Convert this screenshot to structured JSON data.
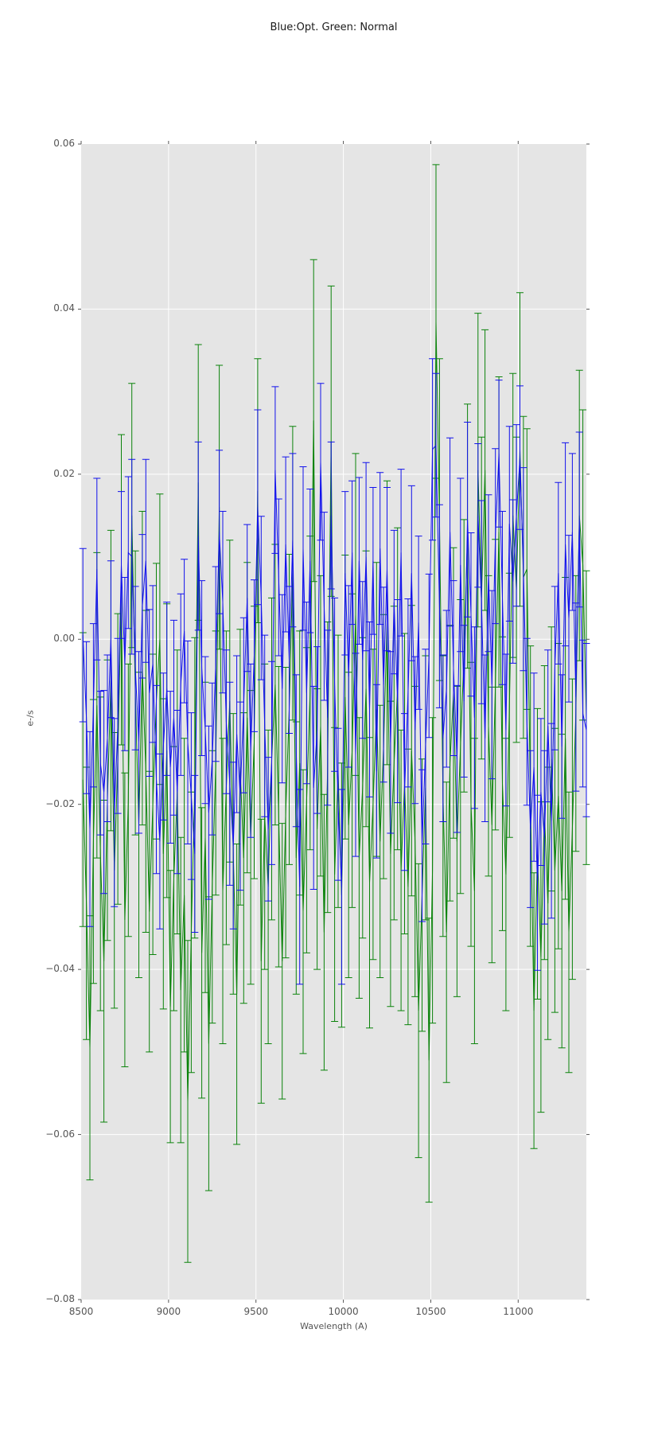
{
  "figure": {
    "title": "Blue:Opt. Green: Normal",
    "xlabel": "Wavelength (A)",
    "ylabel": "e-/s"
  },
  "colors": {
    "background": "#ffffff",
    "plot_background": "#e5e5e5",
    "grid": "#ffffff",
    "tick": "#555555",
    "tick_label": "#555555",
    "title": "#1a1a1a",
    "blue_series": "#1212ec",
    "green_series": "#0b830b"
  },
  "chart_data": {
    "type": "line",
    "subtype": "errorbar",
    "title": "Blue:Opt. Green: Normal",
    "xlabel": "Wavelength (A)",
    "ylabel": "e-/s",
    "xlim": [
      8500,
      11390
    ],
    "ylim": [
      -0.08,
      0.06
    ],
    "xticks": [
      8500,
      9000,
      9500,
      10000,
      10500,
      11000
    ],
    "xtick_labels": [
      "8500",
      "9000",
      "9500",
      "10000",
      "10500",
      "11000"
    ],
    "yticks": [
      0.06,
      0.04,
      0.02,
      0.0,
      -0.02,
      -0.04,
      -0.06,
      -0.08
    ],
    "ytick_labels": [
      "0.06",
      "0.04",
      "0.02",
      "0.00",
      "−0.02",
      "−0.04",
      "−0.06",
      "−0.08"
    ],
    "grid": true,
    "legend_position": "none",
    "x_start": 8510,
    "x_step": 20,
    "n_points": 145,
    "series": [
      {
        "name": "Normal",
        "color": "#0b830b",
        "marker": "none",
        "errorbar_capsize_px": 9,
        "y": [
          -0.017,
          -0.032,
          -0.0495,
          -0.0245,
          -0.008,
          -0.026,
          -0.039,
          -0.0195,
          -0.005,
          -0.028,
          -0.0145,
          0.006,
          -0.034,
          -0.0195,
          0.015,
          -0.0065,
          -0.0225,
          -0.0035,
          -0.016,
          -0.033,
          -0.02,
          -0.0075,
          0.0,
          -0.026,
          -0.0135,
          -0.0445,
          -0.029,
          -0.0185,
          -0.0425,
          -0.031,
          -0.056,
          -0.0355,
          -0.018,
          0.019,
          -0.038,
          -0.024,
          -0.049,
          -0.03,
          -0.015,
          0.016,
          -0.0305,
          -0.018,
          -0.0075,
          -0.026,
          -0.043,
          -0.0155,
          -0.0265,
          -0.0095,
          -0.024,
          -0.0125,
          0.018,
          -0.039,
          -0.0215,
          -0.03,
          -0.0145,
          -0.0055,
          -0.0215,
          -0.039,
          -0.021,
          -0.0085,
          0.008,
          -0.0265,
          -0.015,
          -0.033,
          -0.0195,
          -0.0065,
          0.0265,
          -0.023,
          -0.0105,
          -0.0355,
          -0.0155,
          0.024,
          -0.0285,
          -0.016,
          -0.031,
          -0.007,
          -0.0225,
          -0.0135,
          0.003,
          -0.0265,
          -0.018,
          -0.006,
          -0.0295,
          -0.02,
          -0.0085,
          -0.0245,
          -0.013,
          0.002,
          -0.026,
          -0.015,
          -0.006,
          -0.028,
          -0.0175,
          -0.03,
          -0.0135,
          -0.0245,
          -0.045,
          -0.031,
          -0.018,
          -0.051,
          -0.028,
          0.0385,
          0.0145,
          -0.019,
          -0.0355,
          -0.015,
          -0.0065,
          -0.0245,
          -0.013,
          -0.002,
          0.0125,
          -0.02,
          -0.0305,
          0.0205,
          0.005,
          0.0205,
          -0.0105,
          -0.0225,
          -0.0055,
          0.013,
          -0.0175,
          -0.0285,
          -0.008,
          0.015,
          0.006,
          0.023,
          0.0075,
          0.0085,
          -0.019,
          -0.045,
          -0.026,
          -0.0385,
          -0.021,
          -0.032,
          -0.0145,
          -0.028,
          -0.019,
          -0.0305,
          -0.012,
          -0.0355,
          -0.023,
          -0.009,
          0.015,
          0.009,
          -0.0095
        ],
        "yerr": [
          0.0178,
          0.0165,
          0.016,
          0.0172,
          0.0185,
          0.019,
          0.0195,
          0.017,
          0.0182,
          0.0167,
          0.0176,
          0.0188,
          0.0178,
          0.0165,
          0.016,
          0.0172,
          0.0185,
          0.019,
          0.0195,
          0.017,
          0.0182,
          0.0167,
          0.0176,
          0.0188,
          0.0178,
          0.0165,
          0.016,
          0.0172,
          0.0185,
          0.019,
          0.0195,
          0.017,
          0.0182,
          0.0167,
          0.0176,
          0.0188,
          0.0178,
          0.0165,
          0.016,
          0.0172,
          0.0185,
          0.019,
          0.0195,
          0.017,
          0.0182,
          0.0167,
          0.0176,
          0.0188,
          0.0178,
          0.0165,
          0.016,
          0.0172,
          0.0185,
          0.019,
          0.0195,
          0.017,
          0.0182,
          0.0167,
          0.0176,
          0.0188,
          0.0178,
          0.0165,
          0.016,
          0.0172,
          0.0185,
          0.019,
          0.0195,
          0.017,
          0.0182,
          0.0167,
          0.0176,
          0.0188,
          0.0178,
          0.0165,
          0.016,
          0.0172,
          0.0185,
          0.019,
          0.0195,
          0.017,
          0.0182,
          0.0167,
          0.0176,
          0.0188,
          0.0178,
          0.0165,
          0.016,
          0.0172,
          0.0185,
          0.019,
          0.0195,
          0.017,
          0.0182,
          0.0167,
          0.0176,
          0.0188,
          0.0178,
          0.0165,
          0.016,
          0.0172,
          0.0185,
          0.019,
          0.0195,
          0.017,
          0.0182,
          0.0167,
          0.0176,
          0.0188,
          0.0178,
          0.0165,
          0.016,
          0.0172,
          0.0185,
          0.019,
          0.0195,
          0.017,
          0.0182,
          0.0167,
          0.0176,
          0.0188,
          0.0178,
          0.0165,
          0.016,
          0.0172,
          0.0185,
          0.019,
          0.0195,
          0.017,
          0.0182,
          0.0167,
          0.0176,
          0.0188,
          0.0178,
          0.0165,
          0.016,
          0.0172,
          0.0185,
          0.019,
          0.0195,
          0.017,
          0.0182,
          0.0167,
          0.0176,
          0.0188,
          0.0178
        ]
      },
      {
        "name": "Opt",
        "color": "#1212ec",
        "marker": "none",
        "errorbar_capsize_px": 9,
        "y": [
          0.0005,
          -0.0095,
          -0.023,
          -0.008,
          0.0085,
          -0.015,
          -0.0185,
          -0.012,
          0.0,
          -0.021,
          -0.0105,
          0.009,
          -0.003,
          0.0105,
          0.01,
          -0.0035,
          -0.0125,
          0.004,
          0.0095,
          -0.0065,
          -0.003,
          -0.017,
          -0.0245,
          -0.013,
          -0.006,
          -0.0155,
          -0.0095,
          -0.0185,
          -0.0055,
          0.001,
          -0.0125,
          -0.019,
          -0.026,
          0.0125,
          -0.0035,
          -0.011,
          -0.021,
          -0.0145,
          -0.003,
          0.013,
          0.0045,
          -0.01,
          -0.0175,
          -0.025,
          -0.0115,
          -0.019,
          -0.008,
          0.005,
          -0.0135,
          -0.002,
          0.016,
          0.005,
          -0.0105,
          -0.023,
          -0.015,
          0.0205,
          0.0075,
          -0.006,
          0.0115,
          -0.0025,
          0.012,
          -0.0135,
          -0.03,
          0.011,
          -0.0065,
          0.0095,
          -0.018,
          -0.011,
          0.0215,
          0.004,
          -0.0095,
          0.015,
          -0.0055,
          -0.02,
          -0.03,
          0.008,
          -0.0045,
          0.0105,
          -0.014,
          0.0095,
          -0.0025,
          0.01,
          -0.0085,
          0.0095,
          -0.016,
          0.011,
          -0.0055,
          0.0085,
          -0.0125,
          0.0045,
          -0.0075,
          0.0105,
          -0.0185,
          -0.0065,
          0.008,
          -0.011,
          0.002,
          -0.025,
          -0.013,
          -0.002,
          0.023,
          0.0235,
          0.004,
          -0.012,
          -0.006,
          0.013,
          -0.0035,
          -0.0145,
          0.009,
          -0.0075,
          0.0145,
          0.003,
          -0.0095,
          0.015,
          0.0045,
          -0.012,
          0.008,
          -0.0055,
          0.0125,
          0.0225,
          0.005,
          -0.011,
          0.014,
          0.007,
          0.015,
          0.022,
          0.0085,
          -0.01,
          -0.023,
          -0.0155,
          -0.0295,
          -0.0185,
          -0.024,
          -0.0105,
          -0.022,
          -0.0035,
          0.008,
          -0.013,
          0.0115,
          0.0025,
          0.013,
          -0.007,
          0.0145,
          -0.009,
          -0.011
        ],
        "yerr": [
          0.0105,
          0.0092,
          0.0118,
          0.0099,
          0.011,
          0.0087,
          0.0123,
          0.0101,
          0.0095,
          0.0114,
          0.0106,
          0.0089,
          0.0105,
          0.0092,
          0.0118,
          0.0099,
          0.011,
          0.0087,
          0.0123,
          0.0101,
          0.0095,
          0.0114,
          0.0106,
          0.0089,
          0.0105,
          0.0092,
          0.0118,
          0.0099,
          0.011,
          0.0087,
          0.0123,
          0.0101,
          0.0095,
          0.0114,
          0.0106,
          0.0089,
          0.0105,
          0.0092,
          0.0118,
          0.0099,
          0.011,
          0.0087,
          0.0123,
          0.0101,
          0.0095,
          0.0114,
          0.0106,
          0.0089,
          0.0105,
          0.0092,
          0.0118,
          0.0099,
          0.011,
          0.0087,
          0.0123,
          0.0101,
          0.0095,
          0.0114,
          0.0106,
          0.0089,
          0.0105,
          0.0092,
          0.0118,
          0.0099,
          0.011,
          0.0087,
          0.0123,
          0.0101,
          0.0095,
          0.0114,
          0.0106,
          0.0089,
          0.0105,
          0.0092,
          0.0118,
          0.0099,
          0.011,
          0.0087,
          0.0123,
          0.0101,
          0.0095,
          0.0114,
          0.0106,
          0.0089,
          0.0105,
          0.0092,
          0.0118,
          0.0099,
          0.011,
          0.0087,
          0.0123,
          0.0101,
          0.0095,
          0.0114,
          0.0106,
          0.0089,
          0.0105,
          0.0092,
          0.0118,
          0.0099,
          0.011,
          0.0087,
          0.0123,
          0.0101,
          0.0095,
          0.0114,
          0.0106,
          0.0089,
          0.0105,
          0.0092,
          0.0118,
          0.0099,
          0.011,
          0.0087,
          0.0123,
          0.0101,
          0.0095,
          0.0114,
          0.0106,
          0.0089,
          0.0105,
          0.0092,
          0.0118,
          0.0099,
          0.011,
          0.0087,
          0.0123,
          0.0101,
          0.0095,
          0.0114,
          0.0106,
          0.0089,
          0.0105,
          0.0092,
          0.0118,
          0.0099,
          0.011,
          0.0087,
          0.0123,
          0.0101,
          0.0095,
          0.0114,
          0.0106,
          0.0089,
          0.0105
        ]
      }
    ]
  }
}
